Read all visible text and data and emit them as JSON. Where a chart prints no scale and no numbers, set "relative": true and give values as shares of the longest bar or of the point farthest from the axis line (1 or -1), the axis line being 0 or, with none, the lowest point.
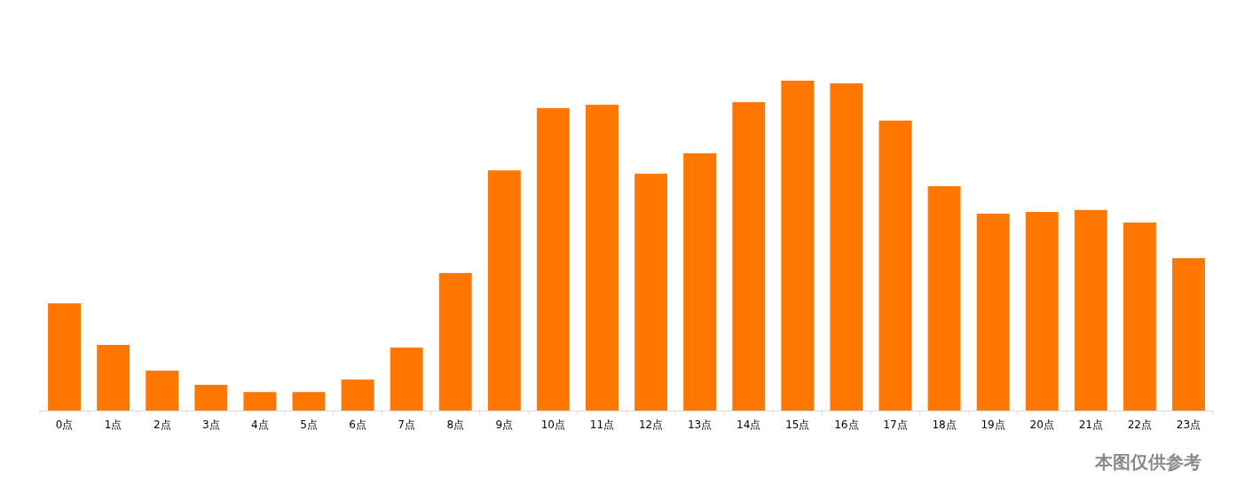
{
  "chart_data": {
    "type": "bar",
    "relative": true,
    "color": "#ff7700",
    "categories": [
      "0点",
      "1点",
      "2点",
      "3点",
      "4点",
      "5点",
      "6点",
      "7点",
      "8点",
      "9点",
      "10点",
      "11点",
      "12点",
      "13点",
      "14点",
      "15点",
      "16点",
      "17点",
      "18点",
      "19点",
      "20点",
      "21点",
      "22点",
      "23点"
    ],
    "values": [
      0.325,
      0.199,
      0.121,
      0.078,
      0.056,
      0.056,
      0.094,
      0.191,
      0.417,
      0.728,
      0.917,
      0.927,
      0.718,
      0.78,
      0.935,
      1,
      0.992,
      0.879,
      0.68,
      0.597,
      0.602,
      0.608,
      0.57,
      0.462
    ],
    "annotations": [
      "本图仅供参考"
    ]
  }
}
